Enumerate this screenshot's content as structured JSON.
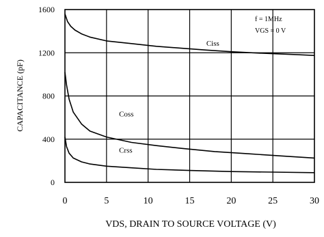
{
  "chart_data": {
    "type": "line",
    "xlabel": "VDS, DRAIN TO SOURCE VOLTAGE (V)",
    "ylabel": "CAPACITANCE (pF)",
    "xlim": [
      0,
      30
    ],
    "ylim": [
      0,
      1600
    ],
    "x_ticks": [
      "0",
      "5",
      "10",
      "15",
      "20",
      "25",
      "30"
    ],
    "y_ticks": [
      "0",
      "400",
      "800",
      "1200",
      "1600"
    ],
    "grid": true,
    "annotation_lines": [
      "f = 1MHz",
      "VGS = 0 V"
    ],
    "series": [
      {
        "name": "Ciss",
        "label_pos": [
          17,
          1265
        ],
        "x": [
          0,
          0.3,
          0.7,
          1.2,
          2,
          3,
          5,
          8,
          11,
          14,
          17,
          20,
          23,
          26,
          28,
          30
        ],
        "y": [
          1560,
          1490,
          1445,
          1410,
          1375,
          1345,
          1310,
          1285,
          1260,
          1242,
          1225,
          1210,
          1198,
          1188,
          1182,
          1175
        ]
      },
      {
        "name": "Coss",
        "label_pos": [
          6.5,
          610
        ],
        "x": [
          0,
          0.2,
          0.5,
          1,
          2,
          3,
          5,
          8,
          11,
          14,
          18,
          22,
          26,
          30
        ],
        "y": [
          1020,
          900,
          770,
          650,
          540,
          475,
          420,
          370,
          340,
          315,
          285,
          265,
          245,
          225
        ]
      },
      {
        "name": "Crss",
        "label_pos": [
          6.5,
          275
        ],
        "x": [
          0,
          0.2,
          0.5,
          1,
          2,
          3,
          5,
          8,
          11,
          15,
          20,
          25,
          30
        ],
        "y": [
          420,
          330,
          270,
          225,
          190,
          170,
          150,
          135,
          120,
          110,
          100,
          95,
          90
        ]
      }
    ]
  }
}
